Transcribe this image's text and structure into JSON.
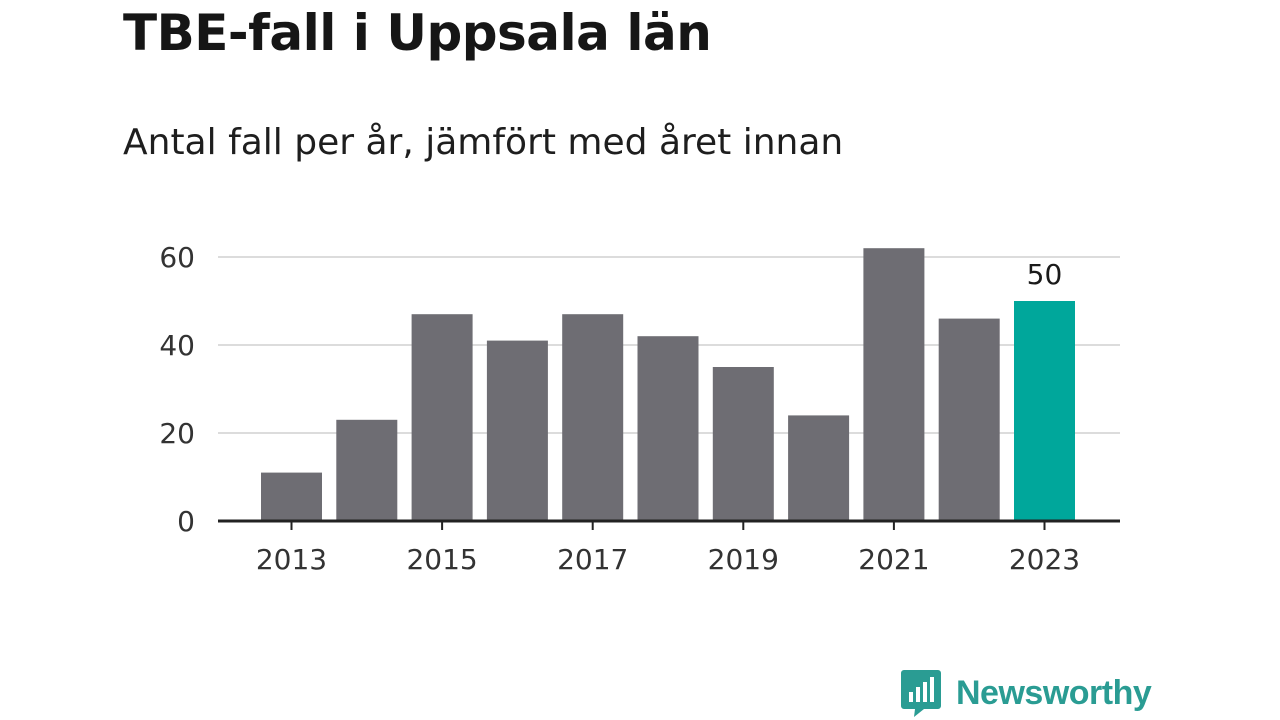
{
  "title": "TBE-fall i Uppsala län",
  "subtitle": "Antal fall per år, jämfört med året innan",
  "brand": {
    "name": "Newsworthy",
    "icon": "newsworthy-logo-icon"
  },
  "colors": {
    "bar": "#6e6d73",
    "highlight": "#00a79b",
    "grid": "#dcdcdc",
    "axis": "#222222",
    "brand": "#2a9c93"
  },
  "chart_data": {
    "type": "bar",
    "categories": [
      "2013",
      "2014",
      "2015",
      "2016",
      "2017",
      "2018",
      "2019",
      "2020",
      "2021",
      "2022",
      "2023"
    ],
    "values": [
      11,
      23,
      47,
      41,
      47,
      42,
      35,
      24,
      62,
      46,
      50
    ],
    "highlight_index": 10,
    "data_labels": [
      {
        "index": 10,
        "text": "50"
      }
    ],
    "x_tick_labels": [
      "2013",
      "2015",
      "2017",
      "2019",
      "2021",
      "2023"
    ],
    "y_ticks": [
      0,
      20,
      40,
      60
    ],
    "ylim": [
      0,
      60
    ],
    "grid": true,
    "legend": "none",
    "xlabel": "",
    "ylabel": ""
  }
}
